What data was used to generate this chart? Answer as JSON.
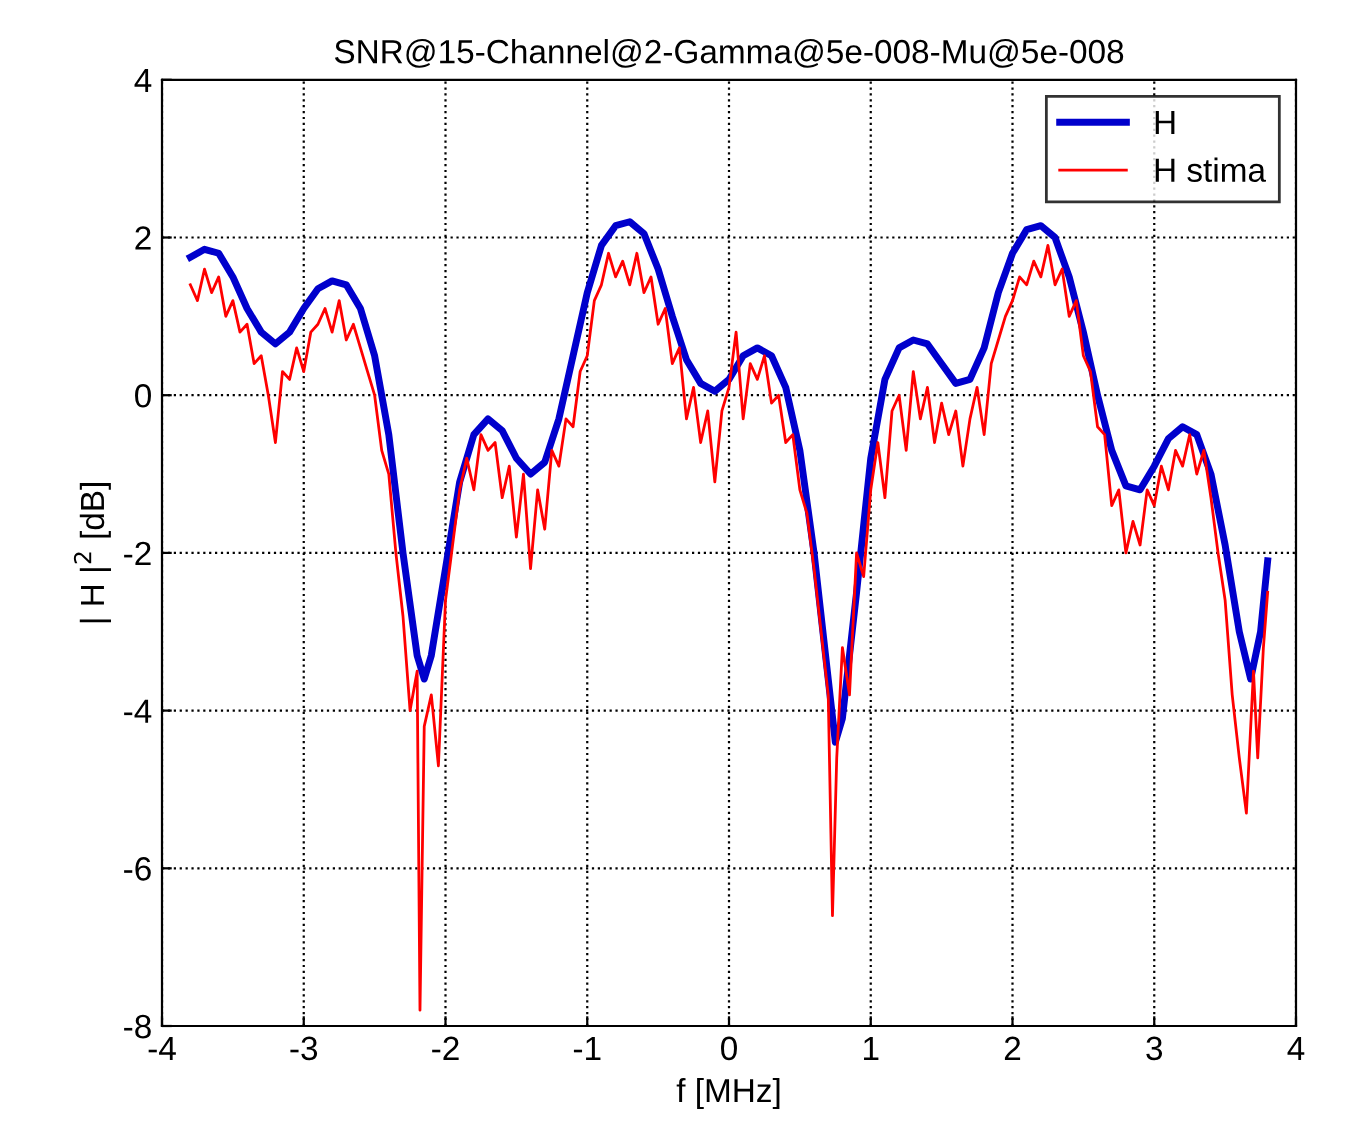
{
  "chart_data": {
    "type": "line",
    "title": "SNR@15-Channel@2-Gamma@5e-008-Mu@5e-008",
    "xlabel": "f [MHz]",
    "ylabel": "| H |$^{2}$ [dB]",
    "xlim": [
      -4,
      4
    ],
    "xticks": [
      -4,
      -3,
      -2,
      -1,
      0,
      1,
      2,
      3,
      4
    ],
    "ylim": [
      -8,
      4
    ],
    "yticks": [
      -8,
      -6,
      -4,
      -2,
      0,
      2,
      4
    ],
    "grid": true,
    "legend": "top right",
    "line_style": "solid",
    "marker": "none",
    "series": [
      {
        "name": "H",
        "color": "#0000cc",
        "x": [
          -3.8,
          -3.7,
          -3.6,
          -3.5,
          -3.4,
          -3.3,
          -3.2,
          -3.1,
          -3.0,
          -2.9,
          -2.8,
          -2.7,
          -2.6,
          -2.5,
          -2.4,
          -2.3,
          -2.2,
          -2.15,
          -2.1,
          -2.0,
          -1.9,
          -1.8,
          -1.7,
          -1.6,
          -1.5,
          -1.4,
          -1.3,
          -1.2,
          -1.1,
          -1.0,
          -0.9,
          -0.8,
          -0.7,
          -0.6,
          -0.5,
          -0.4,
          -0.3,
          -0.2,
          -0.1,
          0,
          0.1,
          0.2,
          0.3,
          0.4,
          0.5,
          0.6,
          0.7,
          0.75,
          0.8,
          0.9,
          1.0,
          1.1,
          1.2,
          1.3,
          1.4,
          1.5,
          1.6,
          1.7,
          1.8,
          1.9,
          2.0,
          2.1,
          2.2,
          2.3,
          2.4,
          2.5,
          2.6,
          2.7,
          2.8,
          2.9,
          3.0,
          3.1,
          3.2,
          3.3,
          3.4,
          3.5,
          3.6,
          3.68,
          3.75,
          3.8
        ],
        "values": [
          1.75,
          1.85,
          1.8,
          1.5,
          1.1,
          0.8,
          0.65,
          0.8,
          1.1,
          1.35,
          1.45,
          1.4,
          1.1,
          0.5,
          -0.5,
          -2.0,
          -3.3,
          -3.6,
          -3.3,
          -2.2,
          -1.1,
          -0.5,
          -0.3,
          -0.45,
          -0.8,
          -1.0,
          -0.85,
          -0.3,
          0.5,
          1.3,
          1.9,
          2.15,
          2.2,
          2.05,
          1.6,
          1.0,
          0.45,
          0.15,
          0.05,
          0.2,
          0.5,
          0.6,
          0.5,
          0.1,
          -0.7,
          -2.0,
          -3.6,
          -4.4,
          -4.1,
          -2.5,
          -0.8,
          0.2,
          0.6,
          0.7,
          0.65,
          0.4,
          0.15,
          0.2,
          0.6,
          1.3,
          1.8,
          2.1,
          2.15,
          2.0,
          1.5,
          0.8,
          0.0,
          -0.7,
          -1.15,
          -1.2,
          -0.9,
          -0.55,
          -0.4,
          -0.5,
          -1.0,
          -1.9,
          -3.0,
          -3.6,
          -3.0,
          -2.1
        ]
      },
      {
        "name": "H stima",
        "color": "#ff0000",
        "x": [
          -3.8,
          -3.75,
          -3.7,
          -3.65,
          -3.6,
          -3.55,
          -3.5,
          -3.45,
          -3.4,
          -3.35,
          -3.3,
          -3.25,
          -3.2,
          -3.15,
          -3.1,
          -3.05,
          -3.0,
          -2.95,
          -2.9,
          -2.85,
          -2.8,
          -2.75,
          -2.7,
          -2.65,
          -2.6,
          -2.55,
          -2.5,
          -2.45,
          -2.4,
          -2.35,
          -2.3,
          -2.25,
          -2.2,
          -2.18,
          -2.15,
          -2.1,
          -2.05,
          -2.0,
          -1.95,
          -1.9,
          -1.85,
          -1.8,
          -1.75,
          -1.7,
          -1.65,
          -1.6,
          -1.55,
          -1.5,
          -1.45,
          -1.4,
          -1.35,
          -1.3,
          -1.25,
          -1.2,
          -1.15,
          -1.1,
          -1.05,
          -1.0,
          -0.95,
          -0.9,
          -0.85,
          -0.8,
          -0.75,
          -0.7,
          -0.65,
          -0.6,
          -0.55,
          -0.5,
          -0.45,
          -0.4,
          -0.35,
          -0.3,
          -0.25,
          -0.2,
          -0.15,
          -0.1,
          -0.05,
          0.0,
          0.05,
          0.1,
          0.15,
          0.2,
          0.25,
          0.3,
          0.35,
          0.4,
          0.45,
          0.5,
          0.55,
          0.6,
          0.65,
          0.7,
          0.73,
          0.76,
          0.8,
          0.85,
          0.9,
          0.95,
          1.0,
          1.05,
          1.1,
          1.15,
          1.2,
          1.25,
          1.3,
          1.35,
          1.4,
          1.45,
          1.5,
          1.55,
          1.6,
          1.65,
          1.7,
          1.75,
          1.8,
          1.85,
          1.9,
          1.95,
          2.0,
          2.05,
          2.1,
          2.15,
          2.2,
          2.25,
          2.3,
          2.35,
          2.4,
          2.45,
          2.5,
          2.55,
          2.6,
          2.65,
          2.7,
          2.75,
          2.8,
          2.85,
          2.9,
          2.95,
          3.0,
          3.05,
          3.1,
          3.15,
          3.2,
          3.25,
          3.3,
          3.35,
          3.4,
          3.45,
          3.5,
          3.55,
          3.6,
          3.65,
          3.7,
          3.73,
          3.77,
          3.8
        ],
        "values": [
          1.4,
          1.2,
          1.6,
          1.3,
          1.5,
          1.0,
          1.2,
          0.8,
          0.9,
          0.4,
          0.5,
          0.0,
          -0.6,
          0.3,
          0.2,
          0.6,
          0.3,
          0.8,
          0.9,
          1.1,
          0.8,
          1.2,
          0.7,
          0.9,
          0.6,
          0.3,
          0.0,
          -0.7,
          -1.0,
          -2.0,
          -2.8,
          -4.0,
          -3.5,
          -7.8,
          -4.2,
          -3.8,
          -4.7,
          -2.6,
          -1.9,
          -1.2,
          -0.8,
          -1.2,
          -0.5,
          -0.7,
          -0.6,
          -1.3,
          -0.9,
          -1.8,
          -1.0,
          -2.2,
          -1.2,
          -1.7,
          -0.7,
          -0.9,
          -0.3,
          -0.4,
          0.3,
          0.5,
          1.2,
          1.4,
          1.8,
          1.5,
          1.7,
          1.4,
          1.8,
          1.3,
          1.5,
          0.9,
          1.1,
          0.4,
          0.6,
          -0.3,
          0.1,
          -0.6,
          -0.2,
          -1.1,
          -0.2,
          0.1,
          0.8,
          -0.3,
          0.4,
          0.2,
          0.5,
          -0.1,
          0.0,
          -0.6,
          -0.5,
          -1.2,
          -1.5,
          -2.2,
          -3.0,
          -3.8,
          -6.6,
          -4.6,
          -3.2,
          -3.8,
          -2.0,
          -2.3,
          -1.2,
          -0.6,
          -1.3,
          -0.2,
          0.0,
          -0.7,
          0.3,
          -0.3,
          0.1,
          -0.6,
          -0.1,
          -0.5,
          -0.2,
          -0.9,
          -0.3,
          0.1,
          -0.5,
          0.4,
          0.7,
          1.0,
          1.2,
          1.5,
          1.4,
          1.7,
          1.5,
          1.9,
          1.4,
          1.6,
          1.0,
          1.2,
          0.5,
          0.3,
          -0.4,
          -0.5,
          -1.4,
          -1.2,
          -2.0,
          -1.6,
          -1.9,
          -1.2,
          -1.4,
          -0.9,
          -1.2,
          -0.7,
          -0.9,
          -0.5,
          -1.0,
          -0.7,
          -1.3,
          -2.0,
          -2.6,
          -3.8,
          -4.6,
          -5.3,
          -3.5,
          -4.6,
          -3.2,
          -2.5
        ]
      }
    ]
  }
}
